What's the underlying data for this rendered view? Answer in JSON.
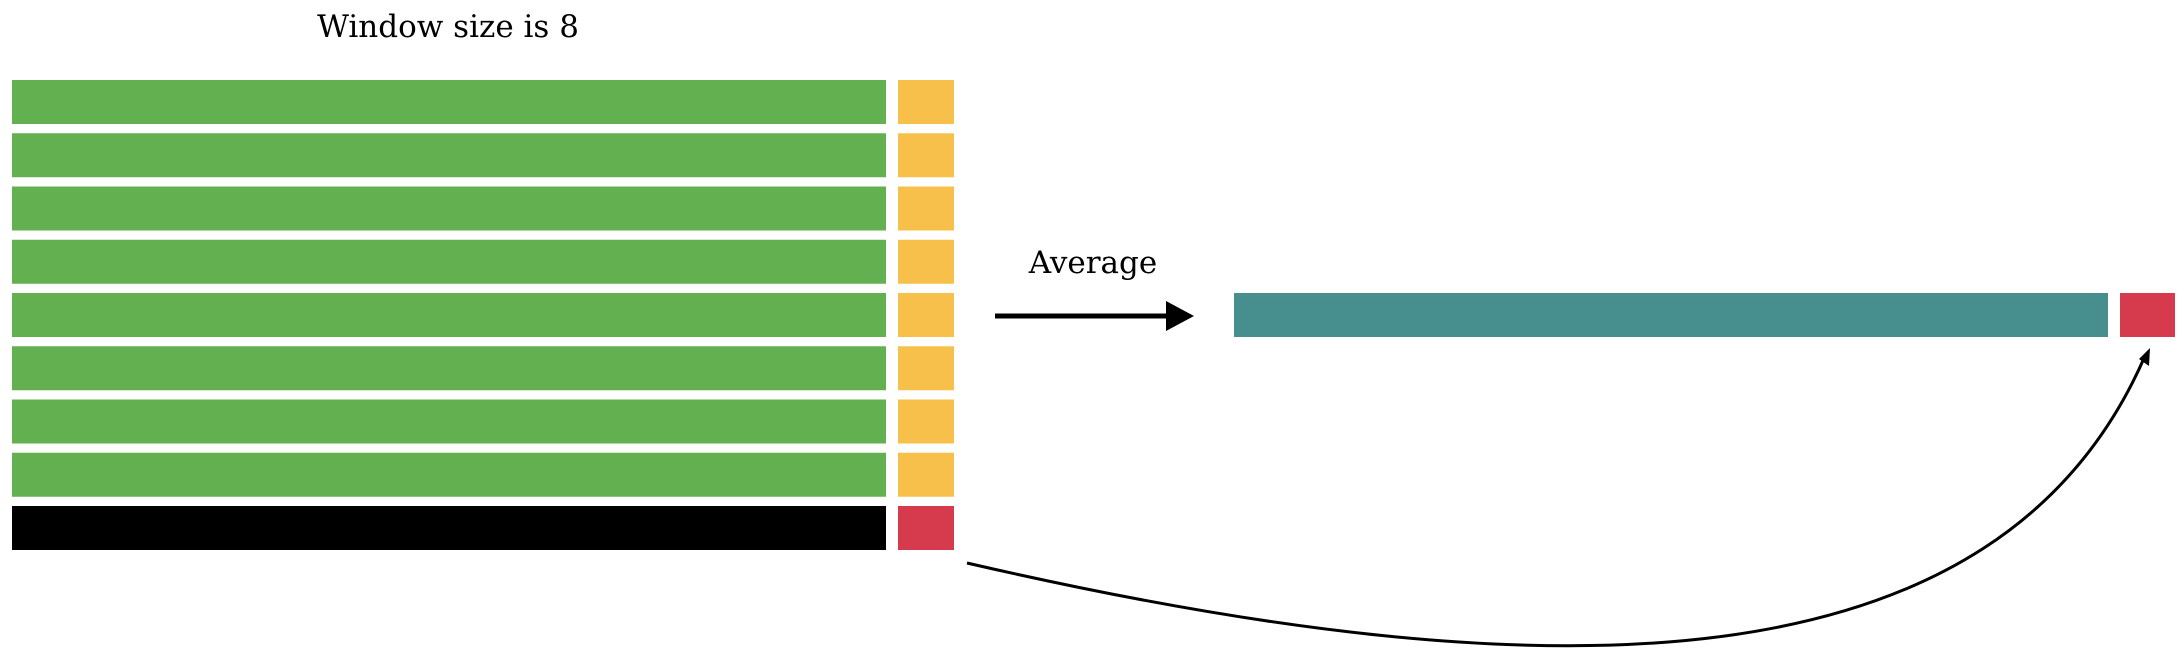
{
  "diagram": {
    "title": "Window size is 8",
    "operation_label": "Average",
    "window_size": 8,
    "colors": {
      "window_row_body": "#62b04f",
      "window_row_tag": "#f6c04b",
      "excluded_row_body": "#000000",
      "excluded_row_tag": "#d53b4c",
      "result_body": "#468f8e",
      "result_tag": "#d53b4c",
      "arrow": "#000000"
    },
    "input_rows": [
      {
        "role": "window",
        "body_color": "#62b04f",
        "tag_color": "#f6c04b"
      },
      {
        "role": "window",
        "body_color": "#62b04f",
        "tag_color": "#f6c04b"
      },
      {
        "role": "window",
        "body_color": "#62b04f",
        "tag_color": "#f6c04b"
      },
      {
        "role": "window",
        "body_color": "#62b04f",
        "tag_color": "#f6c04b"
      },
      {
        "role": "window",
        "body_color": "#62b04f",
        "tag_color": "#f6c04b"
      },
      {
        "role": "window",
        "body_color": "#62b04f",
        "tag_color": "#f6c04b"
      },
      {
        "role": "window",
        "body_color": "#62b04f",
        "tag_color": "#f6c04b"
      },
      {
        "role": "window",
        "body_color": "#62b04f",
        "tag_color": "#f6c04b"
      },
      {
        "role": "next",
        "body_color": "#000000",
        "tag_color": "#d53b4c"
      }
    ],
    "output_row": {
      "body_color": "#468f8e",
      "tag_color": "#d53b4c"
    }
  }
}
